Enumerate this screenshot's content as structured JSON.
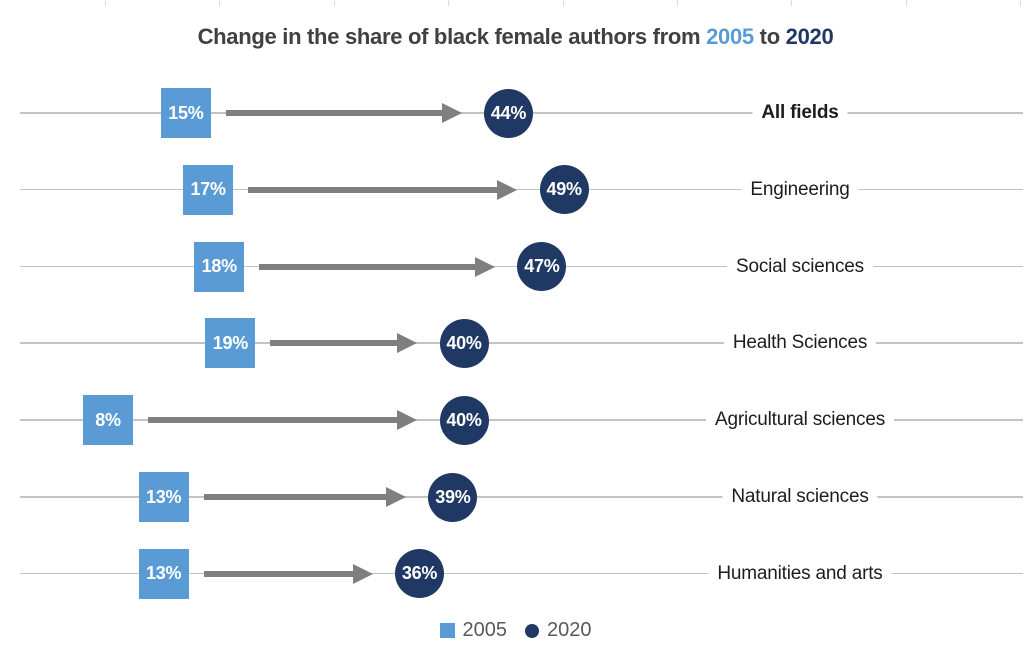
{
  "title": {
    "prefix": "Change in the share of black female authors from",
    "year_from": "2005",
    "connector": "to",
    "year_to": "2020"
  },
  "legend": {
    "items": [
      {
        "label": "2005",
        "marker": "square",
        "color": "#5B9BD5"
      },
      {
        "label": "2020",
        "marker": "circle",
        "color": "#1F3864"
      }
    ],
    "position": "bottom-center"
  },
  "colors": {
    "series_2005": "#5B9BD5",
    "series_2020": "#1F3864",
    "arrow": "#7F7F7F",
    "gridline": "#C3C3C3",
    "title_text": "#404040",
    "category_text": "#1D1D1D",
    "legend_text": "#595959",
    "marker_value_text": "#FFFFFF",
    "background": "#FFFFFF"
  },
  "chart_data": {
    "type": "dumbbell",
    "title": "Change in the share of black female authors from 2005 to 2020",
    "categories": [
      "All fields",
      "Engineering",
      "Social sciences",
      "Health Sciences",
      "Agricultural sciences",
      "Natural sciences",
      "Humanities and arts"
    ],
    "series": [
      {
        "name": "2005",
        "marker": "square",
        "color": "#5B9BD5",
        "values": [
          15,
          17,
          18,
          19,
          8,
          13,
          13
        ]
      },
      {
        "name": "2020",
        "marker": "circle",
        "color": "#1F3864",
        "values": [
          44,
          49,
          47,
          40,
          40,
          39,
          36
        ]
      }
    ],
    "value_suffix": "%",
    "bold_categories": [
      "All fields"
    ],
    "arrows_from_2005_to_2020": true,
    "grid": true,
    "legend_position": "bottom",
    "xlim_percent": [
      0,
      90
    ],
    "xlabel": "",
    "ylabel": ""
  }
}
